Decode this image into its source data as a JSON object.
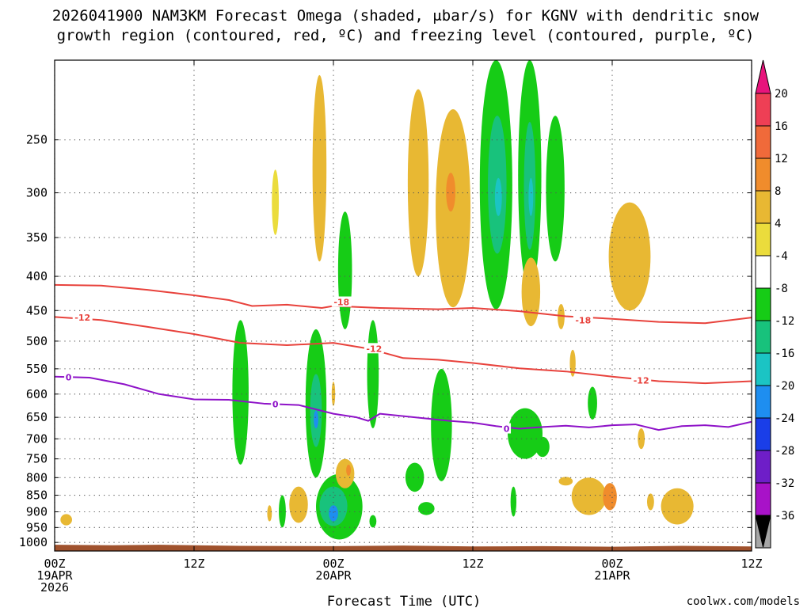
{
  "colors": {
    "dendritic": "#e8423c",
    "freezing": "#8e12c8",
    "ground": "#a0522d",
    "grid": "#555555",
    "credit": "#d81b1b"
  },
  "legend": {
    "labels": [
      "20",
      "16",
      "12",
      "8",
      "4",
      "-4",
      "-8",
      "-12",
      "-16",
      "-20",
      "-24",
      "-28",
      "-32",
      "-36"
    ],
    "segments": [
      {
        "color": "#ee3f55"
      },
      {
        "color": "#f06a3a"
      },
      {
        "color": "#f08c2c"
      },
      {
        "color": "#e8b833"
      },
      {
        "color": "#ebdc3c"
      },
      {
        "color": "#ffffff"
      },
      {
        "color": "#16cc16"
      },
      {
        "color": "#18c27c"
      },
      {
        "color": "#1bc4c4"
      },
      {
        "color": "#1e8ef0"
      },
      {
        "color": "#1a3ee8"
      },
      {
        "color": "#6e1ec8"
      },
      {
        "color": "#a812c8"
      },
      {
        "color": "#a6a6a6"
      }
    ],
    "top_arrow_color": "#e8147c",
    "bottom_arrow_color": "#000000"
  },
  "chart_data": {
    "type": "time-height",
    "title_line1": "2026041900 NAM3KM Forecast Omega (shaded, μbar/s) for KGNV with dendritic snow",
    "title_line2": "growth region (contoured, red, ºC) and freezing level (contoured, purple, ºC)",
    "xlabel": "Forecast Time (UTC)",
    "credit": "coolwx.com/models",
    "xlim_hours": [
      0,
      60
    ],
    "ylim_hpa": [
      1030,
      190
    ],
    "x_ticks": [
      {
        "hour": 0,
        "line1": "00Z",
        "line2": "19APR",
        "line3": "2026"
      },
      {
        "hour": 12,
        "line1": "12Z",
        "line2": "",
        "line3": ""
      },
      {
        "hour": 24,
        "line1": "00Z",
        "line2": "20APR",
        "line3": ""
      },
      {
        "hour": 36,
        "line1": "12Z",
        "line2": "",
        "line3": ""
      },
      {
        "hour": 48,
        "line1": "00Z",
        "line2": "21APR",
        "line3": ""
      },
      {
        "hour": 60,
        "line1": "12Z",
        "line2": "",
        "line3": ""
      }
    ],
    "y_ticks": [
      {
        "p": 250,
        "label": "250"
      },
      {
        "p": 300,
        "label": "300"
      },
      {
        "p": 350,
        "label": "350"
      },
      {
        "p": 400,
        "label": "400"
      },
      {
        "p": 450,
        "label": "450"
      },
      {
        "p": 500,
        "label": "500"
      },
      {
        "p": 550,
        "label": "550"
      },
      {
        "p": 600,
        "label": "600"
      },
      {
        "p": 650,
        "label": "650"
      },
      {
        "p": 700,
        "label": "700"
      },
      {
        "p": 750,
        "label": "750"
      },
      {
        "p": 800,
        "label": "800"
      },
      {
        "p": 850,
        "label": "850"
      },
      {
        "p": 900,
        "label": "900"
      },
      {
        "p": 950,
        "label": "950"
      },
      {
        "p": 1000,
        "label": "1000"
      }
    ],
    "ground_top": [
      [
        0,
        1008
      ],
      [
        5,
        1010
      ],
      [
        9,
        1008
      ],
      [
        16,
        1012
      ],
      [
        24,
        1013
      ],
      [
        30,
        1011
      ],
      [
        36,
        1014
      ],
      [
        42,
        1013
      ],
      [
        48,
        1015
      ],
      [
        54,
        1012
      ],
      [
        60,
        1014
      ]
    ],
    "contours": [
      {
        "name": "minus-18",
        "series": "dendritic",
        "level": "-18",
        "points": [
          [
            0,
            412
          ],
          [
            4,
            413
          ],
          [
            8,
            419
          ],
          [
            12,
            427
          ],
          [
            15,
            434
          ],
          [
            17,
            443
          ],
          [
            20,
            441
          ],
          [
            23,
            446
          ],
          [
            24,
            443
          ],
          [
            28,
            446
          ],
          [
            33,
            448
          ],
          [
            36,
            446
          ],
          [
            40,
            451
          ],
          [
            44,
            459
          ],
          [
            48,
            463
          ],
          [
            52,
            468
          ],
          [
            56,
            470
          ],
          [
            60,
            461
          ]
        ],
        "labels": [
          {
            "hour": 24.7,
            "p": 437
          },
          {
            "hour": 45.5,
            "p": 465
          }
        ]
      },
      {
        "name": "minus-12",
        "series": "dendritic",
        "level": "-12",
        "points": [
          [
            0,
            460
          ],
          [
            4,
            465
          ],
          [
            8,
            476
          ],
          [
            12,
            488
          ],
          [
            16,
            503
          ],
          [
            20,
            507
          ],
          [
            24,
            503
          ],
          [
            27,
            513
          ],
          [
            30,
            530
          ],
          [
            33,
            533
          ],
          [
            36,
            539
          ],
          [
            40,
            549
          ],
          [
            44,
            555
          ],
          [
            48,
            565
          ],
          [
            52,
            574
          ],
          [
            56,
            578
          ],
          [
            60,
            574
          ]
        ],
        "labels": [
          {
            "hour": 2.4,
            "p": 461
          },
          {
            "hour": 27.5,
            "p": 513
          },
          {
            "hour": 50.5,
            "p": 572
          }
        ]
      },
      {
        "name": "freezing-level",
        "series": "freezing",
        "level": "0",
        "points": [
          [
            0,
            565
          ],
          [
            3,
            567
          ],
          [
            6,
            580
          ],
          [
            9,
            600
          ],
          [
            12,
            611
          ],
          [
            15,
            612
          ],
          [
            18,
            620
          ],
          [
            21,
            623
          ],
          [
            24,
            642
          ],
          [
            26,
            650
          ],
          [
            27,
            658
          ],
          [
            28,
            642
          ],
          [
            31,
            650
          ],
          [
            34,
            658
          ],
          [
            36,
            662
          ],
          [
            38,
            670
          ],
          [
            40,
            676
          ],
          [
            42,
            672
          ],
          [
            44,
            669
          ],
          [
            46,
            673
          ],
          [
            48,
            668
          ],
          [
            50,
            666
          ],
          [
            52,
            679
          ],
          [
            54,
            670
          ],
          [
            56,
            668
          ],
          [
            58,
            672
          ],
          [
            60,
            660
          ]
        ],
        "labels": [
          {
            "hour": 1.2,
            "p": 566
          },
          {
            "hour": 19.0,
            "p": 621
          },
          {
            "hour": 38.9,
            "p": 676
          }
        ]
      }
    ],
    "omega_features": [
      {
        "name": "cell-a",
        "hour": 1.0,
        "p": 925,
        "hw": 0.5,
        "dp": 18,
        "value": 5
      },
      {
        "name": "cell-b",
        "hour": 19.0,
        "p": 312,
        "hw": 0.3,
        "dp": 35,
        "value": 4
      },
      {
        "name": "cell-c",
        "hour": 22.8,
        "p": 290,
        "hw": 0.6,
        "dp": 90,
        "value": 6
      },
      {
        "name": "cell-d",
        "hour": 31.3,
        "p": 305,
        "hw": 0.9,
        "dp": 95,
        "value": 6
      },
      {
        "name": "cell-e",
        "hour": 34.3,
        "p": 335,
        "hw": 1.5,
        "dp": 110,
        "value": 8
      },
      {
        "name": "cell-f",
        "hour": 34.1,
        "p": 300,
        "hw": 0.4,
        "dp": 20,
        "value": 10
      },
      {
        "name": "cell-g",
        "hour": 38.0,
        "p": 308,
        "hw": 1.4,
        "dp": 140,
        "value": -8
      },
      {
        "name": "cell-h",
        "hour": 38.1,
        "p": 300,
        "hw": 0.8,
        "dp": 70,
        "value": -14
      },
      {
        "name": "cell-i",
        "hour": 38.2,
        "p": 305,
        "hw": 0.3,
        "dp": 20,
        "value": -18
      },
      {
        "name": "cell-j",
        "hour": 40.9,
        "p": 300,
        "hw": 1.0,
        "dp": 120,
        "value": -8
      },
      {
        "name": "cell-k",
        "hour": 40.9,
        "p": 300,
        "hw": 0.5,
        "dp": 65,
        "value": -14
      },
      {
        "name": "cell-l",
        "hour": 41.0,
        "p": 305,
        "hw": 0.2,
        "dp": 20,
        "value": -18
      },
      {
        "name": "cell-m",
        "hour": 43.1,
        "p": 305,
        "hw": 0.8,
        "dp": 75,
        "value": -8
      },
      {
        "name": "cell-n",
        "hour": 41.0,
        "p": 425,
        "hw": 0.8,
        "dp": 50,
        "value": 5
      },
      {
        "name": "cell-o",
        "hour": 43.6,
        "p": 460,
        "hw": 0.3,
        "dp": 20,
        "value": 5
      },
      {
        "name": "cell-p",
        "hour": 49.5,
        "p": 380,
        "hw": 1.8,
        "dp": 70,
        "value": 5
      },
      {
        "name": "cell-q",
        "hour": 25.0,
        "p": 400,
        "hw": 0.6,
        "dp": 80,
        "value": -8
      },
      {
        "name": "cell-r",
        "hour": 16.0,
        "p": 615,
        "hw": 0.7,
        "dp": 150,
        "value": -8
      },
      {
        "name": "cell-s",
        "hour": 22.5,
        "p": 640,
        "hw": 0.9,
        "dp": 160,
        "value": -8
      },
      {
        "name": "cell-t",
        "hour": 22.5,
        "p": 640,
        "hw": 0.5,
        "dp": 80,
        "value": -14
      },
      {
        "name": "cell-u",
        "hour": 22.5,
        "p": 655,
        "hw": 0.2,
        "dp": 20,
        "value": -20
      },
      {
        "name": "cell-v",
        "hour": 24.5,
        "p": 890,
        "hw": 2.0,
        "dp": 100,
        "value": -8
      },
      {
        "name": "cell-w",
        "hour": 24.0,
        "p": 885,
        "hw": 1.2,
        "dp": 60,
        "value": -14
      },
      {
        "name": "cell-x",
        "hour": 24.0,
        "p": 905,
        "hw": 0.4,
        "dp": 25,
        "value": -20
      },
      {
        "name": "cell-y",
        "hour": 27.4,
        "p": 570,
        "hw": 0.5,
        "dp": 105,
        "value": -8
      },
      {
        "name": "cell-z",
        "hour": 25.0,
        "p": 790,
        "hw": 0.8,
        "dp": 40,
        "value": 5
      },
      {
        "name": "cell-aa",
        "hour": 25.3,
        "p": 780,
        "hw": 0.2,
        "dp": 15,
        "value": 10
      },
      {
        "name": "cell-ab",
        "hour": 21.0,
        "p": 880,
        "hw": 0.8,
        "dp": 55,
        "value": 5
      },
      {
        "name": "cell-ac",
        "hour": 19.6,
        "p": 900,
        "hw": 0.3,
        "dp": 50,
        "value": -8
      },
      {
        "name": "cell-ad",
        "hour": 27.4,
        "p": 930,
        "hw": 0.3,
        "dp": 20,
        "value": -8
      },
      {
        "name": "cell-ae",
        "hour": 33.3,
        "p": 680,
        "hw": 0.9,
        "dp": 130,
        "value": -8
      },
      {
        "name": "cell-af",
        "hour": 31.0,
        "p": 800,
        "hw": 0.8,
        "dp": 40,
        "value": -8
      },
      {
        "name": "cell-ag",
        "hour": 32.0,
        "p": 890,
        "hw": 0.7,
        "dp": 20,
        "value": -8
      },
      {
        "name": "cell-ah",
        "hour": 40.5,
        "p": 690,
        "hw": 1.5,
        "dp": 60,
        "value": -8
      },
      {
        "name": "cell-ai",
        "hour": 39.5,
        "p": 870,
        "hw": 0.25,
        "dp": 45,
        "value": -8
      },
      {
        "name": "cell-aj",
        "hour": 46.3,
        "p": 620,
        "hw": 0.4,
        "dp": 35,
        "value": -8
      },
      {
        "name": "cell-ak",
        "hour": 42.0,
        "p": 720,
        "hw": 0.6,
        "dp": 25,
        "value": -8
      },
      {
        "name": "cell-al",
        "hour": 46.0,
        "p": 855,
        "hw": 1.5,
        "dp": 55,
        "value": 5
      },
      {
        "name": "cell-am",
        "hour": 47.8,
        "p": 855,
        "hw": 0.6,
        "dp": 40,
        "value": 10
      },
      {
        "name": "cell-an",
        "hour": 53.6,
        "p": 885,
        "hw": 1.4,
        "dp": 55,
        "value": 5
      },
      {
        "name": "cell-ao",
        "hour": 51.3,
        "p": 870,
        "hw": 0.3,
        "dp": 25,
        "value": 5
      },
      {
        "name": "cell-ap",
        "hour": 50.5,
        "p": 700,
        "hw": 0.3,
        "dp": 25,
        "value": 5
      },
      {
        "name": "cell-aq",
        "hour": 44.0,
        "p": 810,
        "hw": 0.6,
        "dp": 12,
        "value": 5
      },
      {
        "name": "cell-ar",
        "hour": 18.5,
        "p": 905,
        "hw": 0.2,
        "dp": 25,
        "value": 5
      },
      {
        "name": "cell-as",
        "hour": 44.6,
        "p": 540,
        "hw": 0.25,
        "dp": 25,
        "value": 5
      },
      {
        "name": "cell-at",
        "hour": 24.0,
        "p": 600,
        "hw": 0.15,
        "dp": 25,
        "value": 5
      }
    ]
  }
}
